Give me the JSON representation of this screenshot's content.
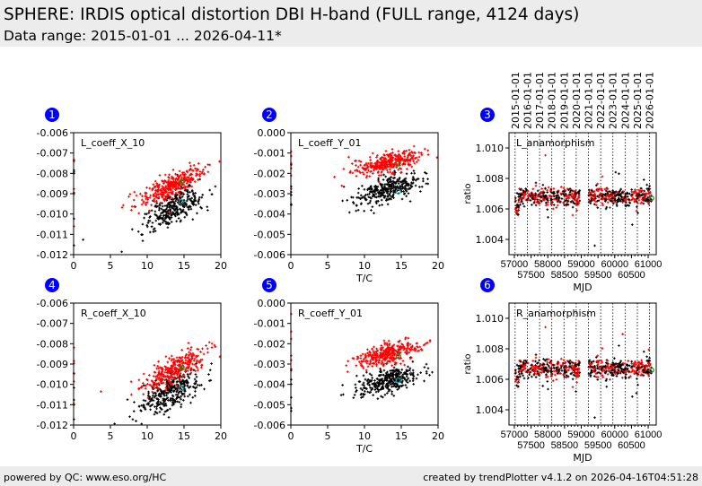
{
  "header": {
    "title": "SPHERE: IRDIS optical distortion DBI H-band (FULL range, 4124 days)",
    "subtitle": "Data range: 2015-01-01 ... 2026-04-11*"
  },
  "footer": {
    "left": "powered by QC: www.eso.org/HC",
    "right": "created by trendPlotter v4.1.2 on 2026-04-16T04:51:28"
  },
  "colors": {
    "badge": "#0000ff",
    "series_a": "#000000",
    "series_b": "#ff0000",
    "highlight_a": "#00aaaa",
    "highlight_b": "#228b22"
  },
  "chart_data": [
    {
      "id": 1,
      "type": "scatter",
      "label": "L_coeff_X_10",
      "xlabel": "",
      "ylabel": "",
      "xlim": [
        0,
        20
      ],
      "ylim": [
        -0.012,
        -0.006
      ],
      "xticks": [
        "0",
        "5",
        "10",
        "15",
        "20"
      ],
      "yticks": [
        "-0.006",
        "-0.007",
        "-0.008",
        "-0.009",
        "-0.010",
        "-0.011",
        "-0.012"
      ],
      "clusters": [
        {
          "color": "black",
          "x_mean": 13.5,
          "x_sd": 2.0,
          "y_at_mean": -0.0097,
          "slope": 0.00017,
          "y_sd": 0.0004
        },
        {
          "color": "red",
          "x_mean": 13.5,
          "x_sd": 2.0,
          "y_at_mean": -0.0086,
          "slope": 0.00018,
          "y_sd": 0.0003
        }
      ],
      "highlights": [
        {
          "color": "cyan",
          "x": 14.6,
          "y": -0.0094
        },
        {
          "color": "green",
          "x": 14.7,
          "y": -0.0084
        }
      ]
    },
    {
      "id": 2,
      "type": "scatter",
      "label": "L_coeff_Y_01",
      "xlabel": "T/C",
      "ylabel": "",
      "xlim": [
        0,
        20
      ],
      "ylim": [
        -0.006,
        0.0
      ],
      "xticks": [
        "0",
        "5",
        "10",
        "15",
        "20"
      ],
      "yticks": [
        "0.000",
        "-0.001",
        "-0.002",
        "-0.003",
        "-0.004",
        "-0.005",
        "-0.006"
      ],
      "clusters": [
        {
          "color": "black",
          "x_mean": 13.2,
          "x_sd": 2.0,
          "y_at_mean": -0.0028,
          "slope": 0.0001,
          "y_sd": 0.0003
        },
        {
          "color": "red",
          "x_mean": 13.2,
          "x_sd": 2.0,
          "y_at_mean": -0.0015,
          "slope": 8e-05,
          "y_sd": 0.00025
        }
      ],
      "highlights": [
        {
          "color": "cyan",
          "x": 14.6,
          "y": -0.0029
        },
        {
          "color": "green",
          "x": 14.6,
          "y": -0.0015
        }
      ]
    },
    {
      "id": 3,
      "type": "scatter",
      "label": "L_anamorphism",
      "xlabel": "MJD",
      "ylabel": "ratio",
      "xlim": [
        56840,
        61240
      ],
      "ylim": [
        1.003,
        1.011
      ],
      "xticks": [
        "57000",
        "57500",
        "58000",
        "58500",
        "59000",
        "59500",
        "60000",
        "60500",
        "61000"
      ],
      "yticks": [
        "1.004",
        "1.006",
        "1.008",
        "1.010"
      ],
      "date_lines": [
        "2015-01-01",
        "2016-01-01",
        "2017-01-01",
        "2018-01-01",
        "2019-01-01",
        "2020-01-01",
        "2021-01-01",
        "2022-01-01",
        "2023-01-01",
        "2024-01-01",
        "2025-01-01",
        "2026-01-01"
      ],
      "date_mjd": [
        57023,
        57388,
        57754,
        58119,
        58484,
        58849,
        59215,
        59580,
        59945,
        60310,
        60676,
        61041
      ],
      "series": {
        "mjd_range": [
          57030,
          61100
        ],
        "gap": [
          58960,
          59220
        ],
        "mean": 1.0068,
        "sd": 0.0003
      },
      "highlights": [
        {
          "color": "green",
          "x": 61100,
          "y": 1.0067
        }
      ]
    },
    {
      "id": 4,
      "type": "scatter",
      "label": "R_coeff_X_10",
      "xlabel": "",
      "ylabel": "",
      "xlim": [
        0,
        20
      ],
      "ylim": [
        -0.012,
        -0.006
      ],
      "xticks": [
        "0",
        "5",
        "10",
        "15",
        "20"
      ],
      "yticks": [
        "-0.006",
        "-0.007",
        "-0.008",
        "-0.009",
        "-0.010",
        "-0.011",
        "-0.012"
      ],
      "clusters": [
        {
          "color": "black",
          "x_mean": 13.2,
          "x_sd": 2.0,
          "y_at_mean": -0.0104,
          "slope": 0.00017,
          "y_sd": 0.0004
        },
        {
          "color": "red",
          "x_mean": 13.5,
          "x_sd": 2.0,
          "y_at_mean": -0.0093,
          "slope": 0.00018,
          "y_sd": 0.0003
        }
      ],
      "highlights": [
        {
          "color": "cyan",
          "x": 14.6,
          "y": -0.0102
        },
        {
          "color": "green",
          "x": 14.7,
          "y": -0.0092
        }
      ]
    },
    {
      "id": 5,
      "type": "scatter",
      "label": "R_coeff_Y_01",
      "xlabel": "T/C",
      "ylabel": "",
      "xlim": [
        0,
        20
      ],
      "ylim": [
        -0.006,
        0.0
      ],
      "xticks": [
        "0",
        "5",
        "10",
        "15",
        "20"
      ],
      "yticks": [
        "0.000",
        "-0.001",
        "-0.002",
        "-0.003",
        "-0.004",
        "-0.005",
        "-0.006"
      ],
      "clusters": [
        {
          "color": "black",
          "x_mean": 13.2,
          "x_sd": 2.0,
          "y_at_mean": -0.0038,
          "slope": 0.0001,
          "y_sd": 0.0003
        },
        {
          "color": "red",
          "x_mean": 13.2,
          "x_sd": 2.0,
          "y_at_mean": -0.0025,
          "slope": 9e-05,
          "y_sd": 0.00025
        }
      ],
      "highlights": [
        {
          "color": "cyan",
          "x": 14.6,
          "y": -0.0038
        },
        {
          "color": "green",
          "x": 14.6,
          "y": -0.0026
        }
      ]
    },
    {
      "id": 6,
      "type": "scatter",
      "label": "R_anamorphism",
      "xlabel": "MJD",
      "ylabel": "ratio",
      "xlim": [
        56840,
        61240
      ],
      "ylim": [
        1.003,
        1.011
      ],
      "xticks": [
        "57000",
        "57500",
        "58000",
        "58500",
        "59000",
        "59500",
        "60000",
        "60500",
        "61000"
      ],
      "yticks": [
        "1.004",
        "1.006",
        "1.008",
        "1.010"
      ],
      "date_mjd": [
        57023,
        57388,
        57754,
        58119,
        58484,
        58849,
        59215,
        59580,
        59945,
        60310,
        60676,
        61041
      ],
      "series": {
        "mjd_range": [
          57030,
          61100
        ],
        "gap": [
          58960,
          59220
        ],
        "mean": 1.0067,
        "sd": 0.0003
      },
      "highlights": [
        {
          "color": "green",
          "x": 61100,
          "y": 1.0066
        }
      ]
    }
  ]
}
